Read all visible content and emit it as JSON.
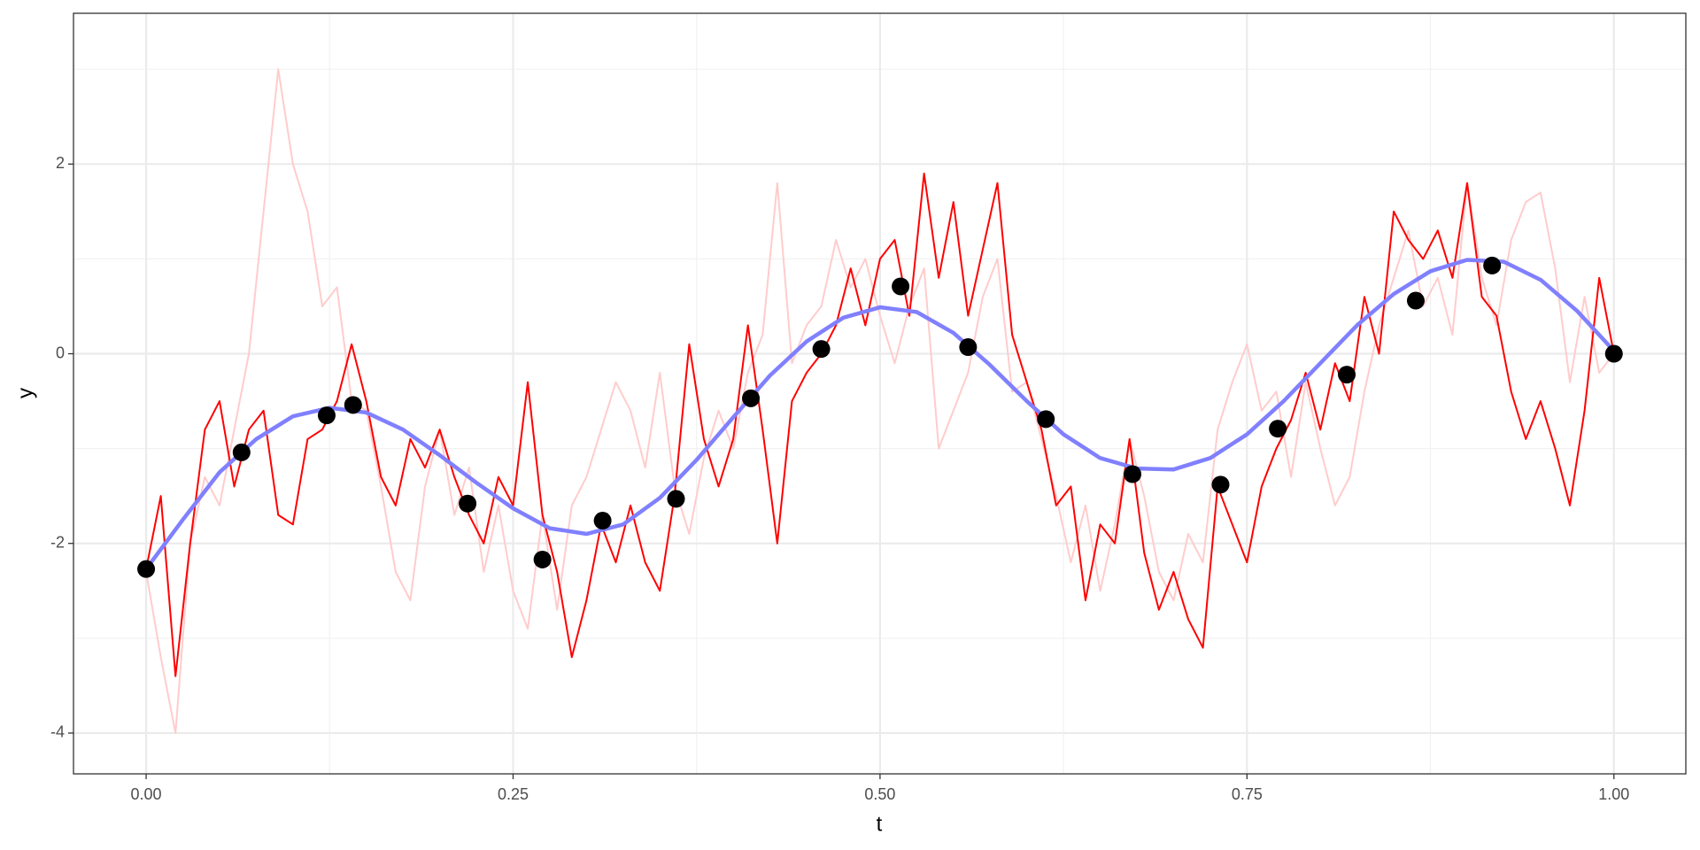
{
  "chart_data": {
    "type": "line",
    "x_label": "t",
    "y_label": "y",
    "xlim": [
      -0.0495,
      1.049
    ],
    "ylim": [
      -4.43,
      3.59
    ],
    "xticks": [
      {
        "value": 0,
        "label": "0.00"
      },
      {
        "value": 0.25,
        "label": "0.25"
      },
      {
        "value": 0.5,
        "label": "0.50"
      },
      {
        "value": 0.75,
        "label": "0.75"
      },
      {
        "value": 1,
        "label": "1.00"
      }
    ],
    "yticks": [
      -4,
      -2,
      0,
      2
    ],
    "x_minor_grid": [
      0.125,
      0.375,
      0.625,
      0.875
    ],
    "y_minor_grid": [
      -3,
      -1,
      1,
      3
    ],
    "grid": true,
    "series": [
      {
        "kind": "line",
        "color": "#ffcccc",
        "width": 2,
        "x": [
          0,
          0.01,
          0.02,
          0.03,
          0.04,
          0.05,
          0.06,
          0.07,
          0.08,
          0.09,
          0.1,
          0.11,
          0.12,
          0.13,
          0.14,
          0.15,
          0.16,
          0.17,
          0.18,
          0.19,
          0.2,
          0.21,
          0.22,
          0.23,
          0.24,
          0.25,
          0.26,
          0.27,
          0.28,
          0.29,
          0.3,
          0.31,
          0.32,
          0.33,
          0.34,
          0.35,
          0.36,
          0.37,
          0.38,
          0.39,
          0.4,
          0.41,
          0.42,
          0.43,
          0.44,
          0.45,
          0.46,
          0.47,
          0.48,
          0.49,
          0.5,
          0.51,
          0.52,
          0.53,
          0.54,
          0.55,
          0.56,
          0.57,
          0.58,
          0.59,
          0.6,
          0.61,
          0.62,
          0.63,
          0.64,
          0.65,
          0.66,
          0.67,
          0.68,
          0.69,
          0.7,
          0.71,
          0.72,
          0.73,
          0.74,
          0.75,
          0.76,
          0.77,
          0.78,
          0.79,
          0.8,
          0.81,
          0.82,
          0.83,
          0.84,
          0.85,
          0.86,
          0.87,
          0.88,
          0.89,
          0.9,
          0.91,
          0.92,
          0.93,
          0.94,
          0.95,
          0.96,
          0.97,
          0.98,
          0.99,
          1
        ],
        "values": [
          -2.3,
          -3.2,
          -4.0,
          -2.0,
          -1.3,
          -1.6,
          -0.8,
          0.0,
          1.5,
          3.0,
          2.0,
          1.5,
          0.5,
          0.7,
          -0.5,
          -0.6,
          -1.4,
          -2.3,
          -2.6,
          -1.4,
          -0.8,
          -1.7,
          -1.2,
          -2.3,
          -1.6,
          -2.5,
          -2.9,
          -1.7,
          -2.7,
          -1.6,
          -1.3,
          -0.8,
          -0.3,
          -0.6,
          -1.2,
          -0.2,
          -1.4,
          -1.9,
          -1.1,
          -0.6,
          -1.0,
          -0.2,
          0.2,
          1.8,
          -0.1,
          0.3,
          0.5,
          1.2,
          0.7,
          1.0,
          0.4,
          -0.1,
          0.5,
          0.9,
          -1.0,
          -0.6,
          -0.2,
          0.6,
          1.0,
          -0.4,
          -0.3,
          -0.9,
          -1.5,
          -2.2,
          -1.6,
          -2.5,
          -1.8,
          -0.9,
          -1.5,
          -2.3,
          -2.6,
          -1.9,
          -2.2,
          -0.8,
          -0.3,
          0.1,
          -0.6,
          -0.4,
          -1.3,
          -0.3,
          -1.0,
          -1.6,
          -1.3,
          -0.4,
          0.3,
          0.8,
          1.3,
          0.5,
          0.8,
          0.2,
          1.8,
          0.8,
          0.3,
          1.2,
          1.6,
          1.7,
          0.9,
          -0.3,
          0.6,
          -0.2,
          0.0
        ]
      },
      {
        "kind": "line",
        "color": "#ff0000",
        "width": 2,
        "x": [
          0,
          0.01,
          0.02,
          0.03,
          0.04,
          0.05,
          0.06,
          0.07,
          0.08,
          0.09,
          0.1,
          0.11,
          0.12,
          0.13,
          0.14,
          0.15,
          0.16,
          0.17,
          0.18,
          0.19,
          0.2,
          0.21,
          0.22,
          0.23,
          0.24,
          0.25,
          0.26,
          0.27,
          0.28,
          0.29,
          0.3,
          0.31,
          0.32,
          0.33,
          0.34,
          0.35,
          0.36,
          0.37,
          0.38,
          0.39,
          0.4,
          0.41,
          0.42,
          0.43,
          0.44,
          0.45,
          0.46,
          0.47,
          0.48,
          0.49,
          0.5,
          0.51,
          0.52,
          0.53,
          0.54,
          0.55,
          0.56,
          0.57,
          0.58,
          0.59,
          0.6,
          0.61,
          0.62,
          0.63,
          0.64,
          0.65,
          0.66,
          0.67,
          0.68,
          0.69,
          0.7,
          0.71,
          0.72,
          0.73,
          0.74,
          0.75,
          0.76,
          0.77,
          0.78,
          0.79,
          0.8,
          0.81,
          0.82,
          0.83,
          0.84,
          0.85,
          0.86,
          0.87,
          0.88,
          0.89,
          0.9,
          0.91,
          0.92,
          0.93,
          0.94,
          0.95,
          0.96,
          0.97,
          0.98,
          0.99,
          1
        ],
        "values": [
          -2.27,
          -1.5,
          -3.4,
          -2.0,
          -0.8,
          -0.5,
          -1.4,
          -0.8,
          -0.6,
          -1.7,
          -1.8,
          -0.9,
          -0.8,
          -0.5,
          0.1,
          -0.5,
          -1.3,
          -1.6,
          -0.9,
          -1.2,
          -0.8,
          -1.3,
          -1.7,
          -2.0,
          -1.3,
          -1.6,
          -0.3,
          -1.7,
          -2.3,
          -3.2,
          -2.6,
          -1.8,
          -2.2,
          -1.6,
          -2.2,
          -2.5,
          -1.5,
          0.1,
          -0.9,
          -1.4,
          -0.9,
          0.3,
          -0.8,
          -2.0,
          -0.5,
          -0.2,
          0.0,
          0.3,
          0.9,
          0.3,
          1.0,
          1.2,
          0.4,
          1.9,
          0.8,
          1.6,
          0.4,
          1.1,
          1.8,
          0.2,
          -0.3,
          -0.8,
          -1.6,
          -1.4,
          -2.6,
          -1.8,
          -2.0,
          -0.9,
          -2.1,
          -2.7,
          -2.3,
          -2.8,
          -3.1,
          -1.4,
          -1.8,
          -2.2,
          -1.4,
          -1.0,
          -0.7,
          -0.2,
          -0.8,
          -0.1,
          -0.5,
          0.6,
          0.0,
          1.5,
          1.2,
          1.0,
          1.3,
          0.8,
          1.8,
          0.6,
          0.4,
          -0.4,
          -0.9,
          -0.5,
          -1.0,
          -1.6,
          -0.6,
          0.8,
          0.0
        ]
      },
      {
        "kind": "line",
        "color": "#8080ff",
        "width": 4.5,
        "x": [
          0,
          0.025,
          0.05,
          0.075,
          0.1,
          0.125,
          0.15,
          0.175,
          0.2,
          0.225,
          0.25,
          0.275,
          0.3,
          0.325,
          0.35,
          0.375,
          0.4,
          0.425,
          0.45,
          0.475,
          0.5,
          0.525,
          0.55,
          0.575,
          0.6,
          0.625,
          0.65,
          0.675,
          0.7,
          0.725,
          0.75,
          0.775,
          0.8,
          0.825,
          0.85,
          0.875,
          0.9,
          0.925,
          0.95,
          0.975,
          1
        ],
        "values": [
          -2.27,
          -1.75,
          -1.25,
          -0.9,
          -0.66,
          -0.57,
          -0.62,
          -0.8,
          -1.07,
          -1.36,
          -1.63,
          -1.84,
          -1.9,
          -1.8,
          -1.52,
          -1.12,
          -0.67,
          -0.23,
          0.13,
          0.38,
          0.49,
          0.44,
          0.22,
          -0.12,
          -0.5,
          -0.85,
          -1.1,
          -1.21,
          -1.22,
          -1.1,
          -0.85,
          -0.5,
          -0.1,
          0.3,
          0.63,
          0.87,
          0.99,
          0.97,
          0.78,
          0.45,
          0.03
        ]
      },
      {
        "kind": "points",
        "color": "#000000",
        "x": [
          0,
          0.065,
          0.123,
          0.141,
          0.219,
          0.27,
          0.311,
          0.361,
          0.412,
          0.46,
          0.514,
          0.56,
          0.613,
          0.672,
          0.732,
          0.771,
          0.818,
          0.865,
          0.917,
          1.0
        ],
        "values": [
          -2.27,
          -1.04,
          -0.65,
          -0.54,
          -1.58,
          -2.17,
          -1.76,
          -1.53,
          -0.47,
          0.05,
          0.71,
          0.07,
          -0.69,
          -1.27,
          -1.38,
          -0.79,
          -0.22,
          0.56,
          0.93,
          0.0
        ]
      }
    ]
  }
}
